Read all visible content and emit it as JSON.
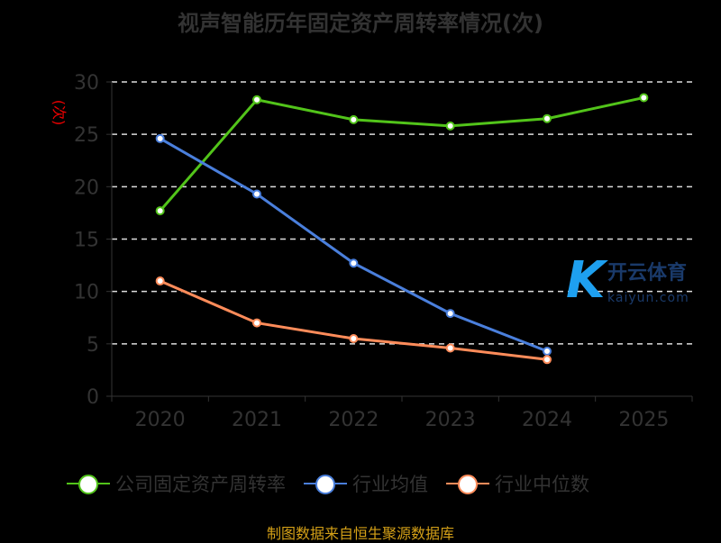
{
  "chart_data": {
    "type": "line",
    "title": "视声智能历年固定资产周转率情况(次)",
    "ylabel": "(次)",
    "xlabel": "",
    "categories": [
      "2020",
      "2021",
      "2022",
      "2023",
      "2024",
      "2025"
    ],
    "ylim": [
      0,
      30
    ],
    "yticks": [
      0,
      5,
      10,
      15,
      20,
      25,
      30
    ],
    "grid": true,
    "legend_position": "bottom",
    "series": [
      {
        "name": "公司固定资产周转率",
        "color": "#52c41a",
        "values": [
          17.7,
          28.3,
          26.4,
          25.8,
          26.5,
          28.5
        ]
      },
      {
        "name": "行业均值",
        "color": "#4a7fdc",
        "values": [
          24.6,
          19.3,
          12.7,
          7.9,
          4.3,
          null
        ]
      },
      {
        "name": "行业中位数",
        "color": "#ff8c5a",
        "values": [
          11.0,
          7.0,
          5.5,
          4.6,
          3.5,
          null
        ]
      }
    ]
  },
  "source": "制图数据来自恒生聚源数据库",
  "watermark": {
    "logo": "K",
    "name": "开云体育",
    "url": "kaiyun.com"
  }
}
